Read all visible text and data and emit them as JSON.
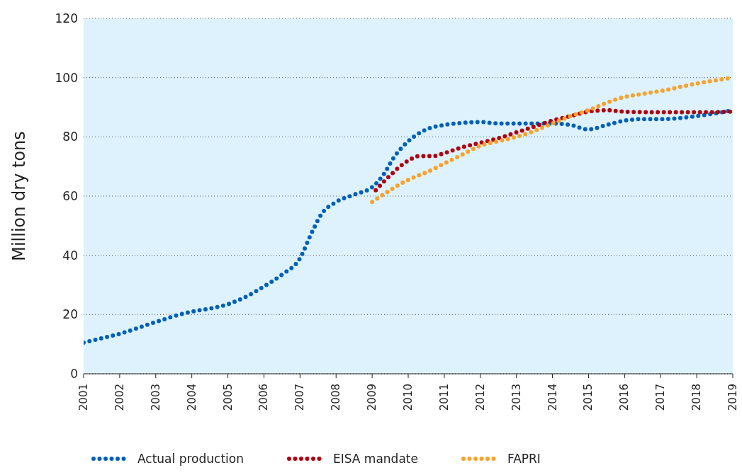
{
  "chart_data": {
    "type": "line",
    "ylabel": "Million dry tons",
    "xlim": [
      2001,
      2019
    ],
    "xticks": [
      2001,
      2002,
      2003,
      2004,
      2005,
      2006,
      2007,
      2008,
      2009,
      2010,
      2011,
      2012,
      2013,
      2014,
      2015,
      2016,
      2017,
      2018,
      2019
    ],
    "ylim": [
      0,
      120
    ],
    "yticks": [
      0,
      20,
      40,
      60,
      80,
      100,
      120
    ],
    "grid": "y",
    "legend": "bottom",
    "line_style": "dotted",
    "marker": "none",
    "series": [
      {
        "name": "Actual production",
        "color": "#0060b6",
        "x": [
          2001,
          2001.5,
          2002,
          2003,
          2004,
          2004.5,
          2005,
          2005.5,
          2006,
          2006.5,
          2007,
          2007.3,
          2007.6,
          2008,
          2008.5,
          2009,
          2009.3,
          2009.6,
          2010,
          2010.5,
          2011,
          2011.5,
          2012,
          2012.5,
          2013,
          2013.5,
          2014,
          2014.5,
          2015,
          2015.5,
          2016,
          2016.5,
          2017,
          2018,
          2019
        ],
        "values": [
          10.5,
          12,
          13.5,
          17.5,
          21,
          22,
          23.5,
          26,
          29.5,
          33.5,
          39,
          47,
          54,
          58,
          60.5,
          63,
          67,
          73,
          78.5,
          82.5,
          84,
          84.7,
          85,
          84.5,
          84.5,
          84.5,
          84.5,
          84,
          82.5,
          84,
          85.5,
          86,
          86,
          87,
          89
        ]
      },
      {
        "name": "EISA mandate",
        "color": "#b00010",
        "x": [
          2009.1,
          2009.5,
          2010,
          2010.3,
          2010.7,
          2011,
          2011.5,
          2012,
          2012.5,
          2013,
          2013.5,
          2014,
          2014.5,
          2015,
          2015.5,
          2016,
          2017,
          2018,
          2019
        ],
        "values": [
          62,
          67,
          72,
          73.5,
          73.5,
          74.5,
          76.5,
          78,
          79.5,
          81.5,
          83.5,
          85.5,
          87,
          88.5,
          89,
          88.5,
          88.3,
          88.3,
          88.5
        ]
      },
      {
        "name": "FAPRI",
        "color": "#f9a12a",
        "x": [
          2009,
          2009.5,
          2010,
          2010.5,
          2011,
          2011.5,
          2012,
          2012.5,
          2013,
          2013.5,
          2014,
          2014.5,
          2015,
          2015.5,
          2016,
          2016.5,
          2017,
          2018,
          2019
        ],
        "values": [
          58,
          62,
          65.5,
          68,
          71,
          74,
          77,
          78.5,
          80,
          82,
          84.5,
          87,
          89,
          91.5,
          93.5,
          94.5,
          95.5,
          98,
          100
        ]
      }
    ]
  }
}
